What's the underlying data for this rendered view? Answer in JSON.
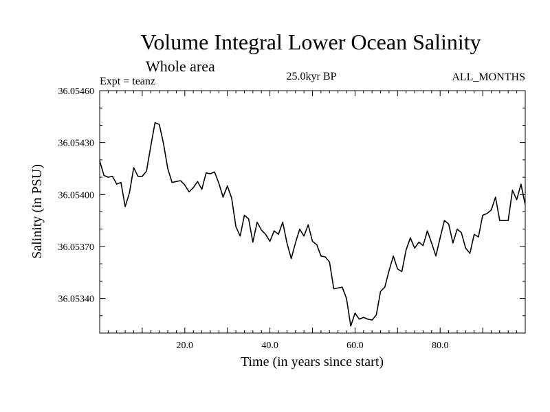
{
  "chart_data": {
    "type": "line",
    "title": "Volume Integral Lower Ocean Salinity",
    "subtitle": "Whole area",
    "experiment": "Expt = teanz",
    "period": "25.0kyr BP",
    "months": "ALL_MONTHS",
    "xlabel": "Time (in years since start)",
    "ylabel": "Salinity (in PSU)",
    "xlim": [
      0,
      100
    ],
    "ylim": [
      36.0532,
      36.0546
    ],
    "x_major_ticks": [
      20,
      40,
      60,
      80
    ],
    "x_tick_labels": [
      "20.0",
      "40.0",
      "60.0",
      "80.0"
    ],
    "y_major_ticks": [
      36.0534,
      36.0537,
      36.054,
      36.0543,
      36.0546
    ],
    "y_tick_labels": [
      "36.05340",
      "36.05370",
      "36.05400",
      "36.05430",
      "36.05460"
    ],
    "grid": false,
    "series": [
      {
        "name": "Volume Integral Lower Ocean Salinity",
        "x": [
          0,
          1,
          2,
          3,
          4,
          5,
          6,
          7,
          8,
          9,
          10,
          11,
          12,
          13,
          14,
          15,
          16,
          17,
          18,
          19,
          20,
          21,
          22,
          23,
          24,
          25,
          26,
          27,
          28,
          29,
          30,
          31,
          32,
          33,
          34,
          35,
          36,
          37,
          38,
          39,
          40,
          41,
          42,
          43,
          44,
          45,
          46,
          47,
          48,
          49,
          50,
          51,
          52,
          53,
          54,
          55,
          56,
          57,
          58,
          59,
          60,
          61,
          62,
          63,
          64,
          65,
          66,
          67,
          68,
          69,
          70,
          71,
          72,
          73,
          74,
          75,
          76,
          77,
          78,
          79,
          80,
          81,
          82,
          83,
          84,
          85,
          86,
          87,
          88,
          89,
          90,
          91,
          92,
          93,
          94,
          95,
          96,
          97,
          98,
          99,
          100
        ],
        "values": [
          36.054195,
          36.05411,
          36.0541,
          36.054105,
          36.05406,
          36.05407,
          36.05393,
          36.05401,
          36.054155,
          36.054105,
          36.054105,
          36.054135,
          36.05428,
          36.054415,
          36.054405,
          36.054295,
          36.05415,
          36.05407,
          36.054075,
          36.05408,
          36.054055,
          36.054015,
          36.05404,
          36.054075,
          36.05403,
          36.054125,
          36.05412,
          36.05413,
          36.054065,
          36.053985,
          36.05405,
          36.05398,
          36.053815,
          36.05376,
          36.05388,
          36.05386,
          36.053725,
          36.05384,
          36.053795,
          36.05377,
          36.05373,
          36.05379,
          36.05377,
          36.05384,
          36.05372,
          36.05363,
          36.05372,
          36.0538,
          36.05376,
          36.053825,
          36.05373,
          36.05371,
          36.053645,
          36.05364,
          36.05361,
          36.053455,
          36.05346,
          36.053465,
          36.0534,
          36.05324,
          36.053315,
          36.05328,
          36.05329,
          36.05328,
          36.053275,
          36.053305,
          36.05344,
          36.053465,
          36.05356,
          36.053645,
          36.05357,
          36.053555,
          36.05368,
          36.05375,
          36.05369,
          36.053725,
          36.053705,
          36.05379,
          36.05372,
          36.053645,
          36.05375,
          36.05385,
          36.05383,
          36.05372,
          36.0538,
          36.05378,
          36.05369,
          36.05366,
          36.05377,
          36.053755,
          36.05388,
          36.05389,
          36.05391,
          36.053985,
          36.05385,
          36.05385,
          36.05385,
          36.054025,
          36.05397,
          36.05406,
          36.05394
        ]
      }
    ]
  }
}
